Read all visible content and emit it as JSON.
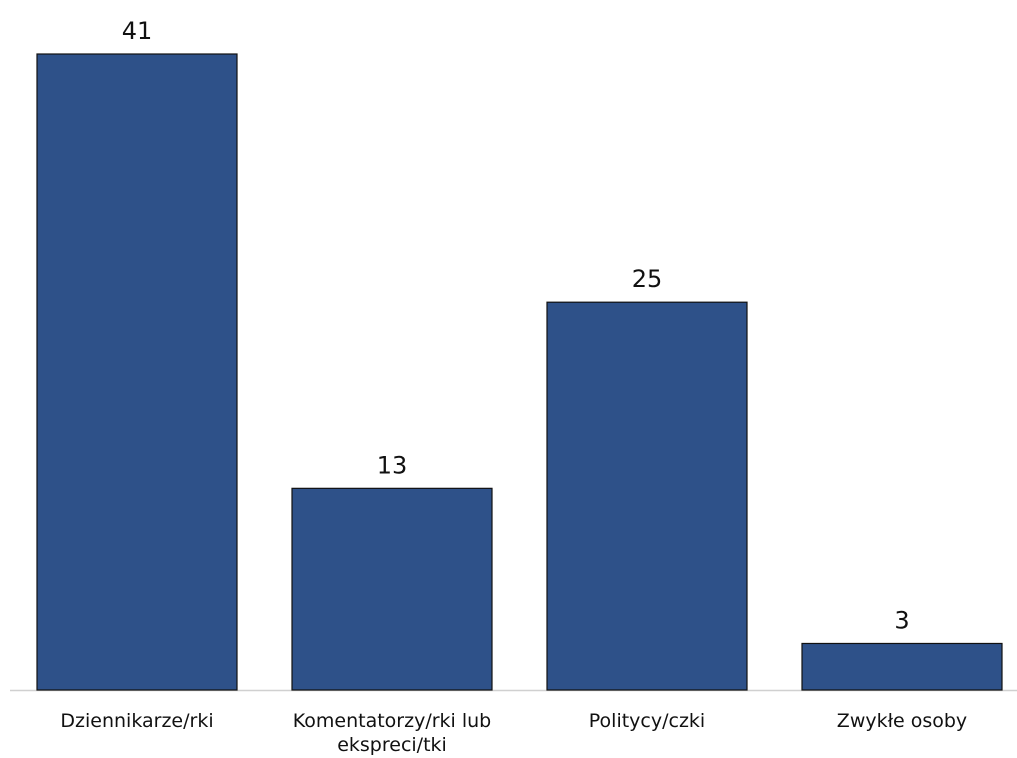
{
  "chart_data": {
    "type": "bar",
    "categories": [
      "Dziennikarze/rki",
      "Komentatorzy/rki lub ekspreci/tki",
      "Politycy/czki",
      "Zwykłe osoby"
    ],
    "values": [
      41,
      13,
      25,
      3
    ],
    "color": "#2e5189"
  }
}
